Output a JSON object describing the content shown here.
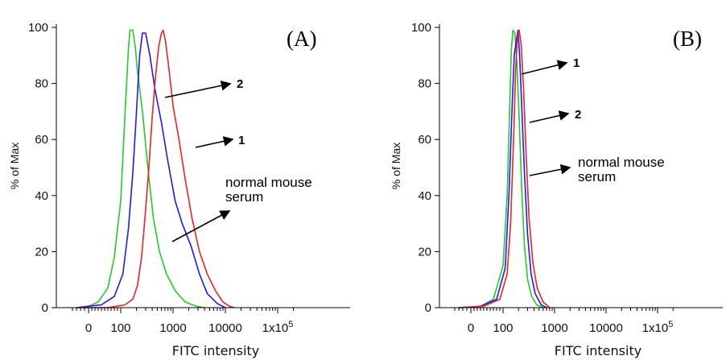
{
  "chart_data": [
    {
      "type": "line",
      "panel_label": "(A)",
      "xlabel": "FITC intensity",
      "ylabel": "% of Max",
      "xscale": "biexponential",
      "xlim": [
        -50,
        250000
      ],
      "ylim": [
        0,
        100
      ],
      "x_ticks": [
        "0",
        "100",
        "1000",
        "10000",
        "1x10^5"
      ],
      "y_ticks": [
        "0",
        "20",
        "40",
        "60",
        "80",
        "100"
      ],
      "grid": false,
      "legend": "none",
      "series": [
        {
          "color": "#22cc22",
          "points": [
            [
              -30,
              0
            ],
            [
              0,
              0.5
            ],
            [
              30,
              2
            ],
            [
              60,
              7
            ],
            [
              80,
              18
            ],
            [
              100,
              38
            ],
            [
              120,
              68
            ],
            [
              140,
              92
            ],
            [
              150,
              99
            ],
            [
              170,
              99
            ],
            [
              190,
              93
            ],
            [
              210,
              84
            ],
            [
              260,
              70
            ],
            [
              330,
              50
            ],
            [
              420,
              32
            ],
            [
              550,
              20
            ],
            [
              750,
              12
            ],
            [
              1100,
              6
            ],
            [
              1700,
              2
            ],
            [
              2800,
              0.5
            ],
            [
              4000,
              0
            ]
          ]
        },
        {
          "color": "#1a1aff",
          "points": [
            [
              -30,
              0
            ],
            [
              0,
              0.5
            ],
            [
              40,
              1
            ],
            [
              80,
              4
            ],
            [
              110,
              12
            ],
            [
              140,
              28
            ],
            [
              170,
              48
            ],
            [
              200,
              70
            ],
            [
              230,
              90
            ],
            [
              260,
              98
            ],
            [
              300,
              98
            ],
            [
              360,
              90
            ],
            [
              450,
              78
            ],
            [
              600,
              66
            ],
            [
              800,
              52
            ],
            [
              1100,
              38
            ],
            [
              1500,
              30
            ],
            [
              2200,
              22
            ],
            [
              3200,
              12
            ],
            [
              4500,
              5
            ],
            [
              7000,
              1.5
            ],
            [
              10000,
              0
            ]
          ]
        },
        {
          "color": "#ee2222",
          "points": [
            [
              -30,
              0
            ],
            [
              60,
              0
            ],
            [
              120,
              1
            ],
            [
              170,
              3
            ],
            [
              210,
              8
            ],
            [
              250,
              18
            ],
            [
              290,
              32
            ],
            [
              340,
              48
            ],
            [
              400,
              68
            ],
            [
              460,
              82
            ],
            [
              530,
              93
            ],
            [
              600,
              98
            ],
            [
              650,
              99
            ],
            [
              720,
              95
            ],
            [
              850,
              84
            ],
            [
              1000,
              72
            ],
            [
              1300,
              60
            ],
            [
              1700,
              46
            ],
            [
              2300,
              32
            ],
            [
              3200,
              20
            ],
            [
              4500,
              12
            ],
            [
              6500,
              6
            ],
            [
              9000,
              2
            ],
            [
              12000,
              0.5
            ],
            [
              15000,
              0
            ]
          ]
        }
      ],
      "annotations": [
        "2",
        "1",
        "normal mouse serum"
      ]
    },
    {
      "type": "line",
      "panel_label": "(B)",
      "xlabel": "FITC intensity",
      "ylabel": "% of Max",
      "xscale": "biexponential",
      "xlim": [
        -50,
        250000
      ],
      "ylim": [
        0,
        100
      ],
      "x_ticks": [
        "0",
        "100",
        "1000",
        "10000",
        "1x10^5"
      ],
      "y_ticks": [
        "0",
        "20",
        "40",
        "60",
        "80",
        "100"
      ],
      "grid": false,
      "legend": "none",
      "series": [
        {
          "color": "#22cc22",
          "points": [
            [
              -30,
              0
            ],
            [
              30,
              0.5
            ],
            [
              70,
              3
            ],
            [
              100,
              15
            ],
            [
              120,
              40
            ],
            [
              135,
              72
            ],
            [
              145,
              92
            ],
            [
              155,
              99
            ],
            [
              170,
              98
            ],
            [
              185,
              88
            ],
            [
              205,
              68
            ],
            [
              230,
              42
            ],
            [
              260,
              22
            ],
            [
              300,
              10
            ],
            [
              360,
              4
            ],
            [
              450,
              1
            ],
            [
              600,
              0
            ]
          ]
        },
        {
          "color": "#1a1aff",
          "points": [
            [
              -30,
              0
            ],
            [
              30,
              0.5
            ],
            [
              80,
              3
            ],
            [
              110,
              14
            ],
            [
              130,
              40
            ],
            [
              150,
              72
            ],
            [
              165,
              90
            ],
            [
              180,
              95
            ],
            [
              195,
              99
            ],
            [
              210,
              90
            ],
            [
              230,
              72
            ],
            [
              260,
              48
            ],
            [
              300,
              26
            ],
            [
              350,
              12
            ],
            [
              420,
              5
            ],
            [
              550,
              1
            ],
            [
              700,
              0
            ]
          ]
        },
        {
          "color": "#ee2222",
          "points": [
            [
              -30,
              0
            ],
            [
              40,
              0.5
            ],
            [
              90,
              3
            ],
            [
              120,
              12
            ],
            [
              140,
              30
            ],
            [
              160,
              60
            ],
            [
              175,
              85
            ],
            [
              190,
              96
            ],
            [
              205,
              99
            ],
            [
              225,
              94
            ],
            [
              250,
              78
            ],
            [
              280,
              55
            ],
            [
              320,
              32
            ],
            [
              380,
              16
            ],
            [
              460,
              7
            ],
            [
              600,
              2
            ],
            [
              800,
              0
            ]
          ]
        }
      ],
      "annotations": [
        "1",
        "2",
        "normal mouse serum"
      ]
    }
  ]
}
